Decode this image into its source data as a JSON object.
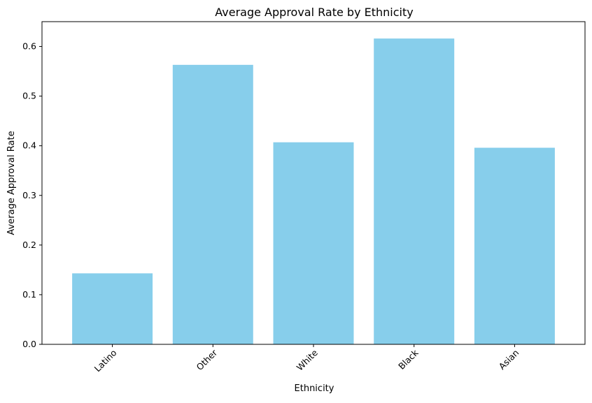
{
  "chart_data": {
    "type": "bar",
    "title": "Average Approval Rate by Ethnicity",
    "xlabel": "Ethnicity",
    "ylabel": "Average Approval Rate",
    "categories": [
      "Latino",
      "Other",
      "White",
      "Black",
      "Asian"
    ],
    "values": [
      0.143,
      0.563,
      0.407,
      0.616,
      0.396
    ],
    "ylim": [
      0,
      0.65
    ],
    "yticks": [
      "0.0",
      "0.1",
      "0.2",
      "0.3",
      "0.4",
      "0.5",
      "0.6"
    ],
    "bar_color": "#87CEEB",
    "grid": false,
    "xtick_rotation": 45
  }
}
